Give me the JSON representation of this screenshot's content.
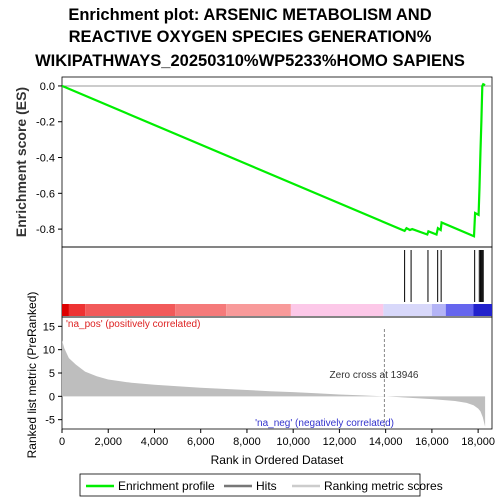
{
  "title_lines": [
    "Enrichment plot: ARSENIC METABOLISM AND",
    "REACTIVE OXYGEN SPECIES GENERATION%",
    "WIKIPATHWAYS_20250310%WP5233%HOMO SAPIENS"
  ],
  "colors": {
    "enrichment": "#00ee00",
    "hits": "#000000",
    "metric_fill": "#bebebe",
    "pos_label": "#dd2222",
    "neg_label": "#3333cc"
  },
  "chart_data": [
    {
      "type": "line",
      "panel": "enrichment-profile",
      "ylabel": "Enrichment score (ES)",
      "xlim": [
        0,
        18600
      ],
      "ylim": [
        -0.9,
        0.05
      ],
      "yticks": [
        0.0,
        -0.2,
        -0.4,
        -0.6,
        -0.8
      ],
      "ytick_labels": [
        "0.0",
        "-0.2",
        "-0.4",
        "-0.6",
        "-0.8"
      ],
      "series": [
        {
          "x": [
            0,
            14820,
            14900,
            15050,
            15150,
            15800,
            15850,
            16200,
            16260,
            16380,
            16420,
            17820,
            17870,
            18020,
            18060,
            18100,
            18140,
            18180,
            18220,
            18300
          ],
          "values": [
            0.0,
            -0.81,
            -0.795,
            -0.805,
            -0.8,
            -0.83,
            -0.812,
            -0.83,
            -0.795,
            -0.805,
            -0.763,
            -0.84,
            -0.71,
            -0.72,
            -0.565,
            -0.38,
            -0.195,
            0.0,
            0.01,
            0.005
          ]
        }
      ]
    },
    {
      "type": "scatter",
      "panel": "hits",
      "x": [
        14820,
        15100,
        15830,
        16250,
        16400,
        17850,
        18050,
        18100,
        18140,
        18180,
        18220
      ]
    },
    {
      "type": "area",
      "panel": "ranked-metric",
      "xlabel": "Rank in Ordered Dataset",
      "ylabel": "Ranked list metric (PreRanked)",
      "xlim": [
        0,
        18600
      ],
      "ylim": [
        -7,
        17
      ],
      "xticks": [
        0,
        2000,
        4000,
        6000,
        8000,
        10000,
        12000,
        14000,
        16000,
        18000
      ],
      "xtick_labels": [
        "0",
        "2,000",
        "4,000",
        "6,000",
        "8,000",
        "10,000",
        "12,000",
        "14,000",
        "16,000",
        "18,000"
      ],
      "yticks": [
        15,
        10,
        5,
        0,
        -5
      ],
      "ytick_labels": [
        "15",
        "10",
        "5",
        "0",
        "-5"
      ],
      "x": [
        0,
        100,
        300,
        600,
        1000,
        1500,
        2000,
        3000,
        4000,
        5000,
        6000,
        7000,
        8000,
        9000,
        10000,
        11000,
        12000,
        13000,
        13946,
        15000,
        16000,
        17000,
        17500,
        17800,
        18000,
        18100,
        18200,
        18300
      ],
      "values": [
        12.0,
        10.3,
        8.2,
        6.8,
        5.3,
        4.3,
        3.6,
        2.9,
        2.5,
        2.15,
        1.85,
        1.6,
        1.35,
        1.1,
        0.9,
        0.65,
        0.4,
        0.2,
        0.0,
        -0.3,
        -0.6,
        -1.0,
        -1.4,
        -1.9,
        -2.6,
        -3.2,
        -4.5,
        -6.5
      ],
      "annotations": {
        "zero_cross": "Zero cross at 13946",
        "zero_cross_x": 13946,
        "pos_label": "'na_pos' (positively correlated)",
        "neg_label": "'na_neg' (negatively correlated)"
      }
    }
  ],
  "colorbar": [
    {
      "from": 0,
      "to": 300,
      "color": "#dd0000"
    },
    {
      "from": 300,
      "to": 1000,
      "color": "#ee3333"
    },
    {
      "from": 1000,
      "to": 4900,
      "color": "#f25a5a"
    },
    {
      "from": 4900,
      "to": 7100,
      "color": "#f57a7a"
    },
    {
      "from": 7100,
      "to": 9900,
      "color": "#f89a9a"
    },
    {
      "from": 9900,
      "to": 13900,
      "color": "#fcc8e8"
    },
    {
      "from": 13900,
      "to": 16000,
      "color": "#d8d8fa"
    },
    {
      "from": 16000,
      "to": 16600,
      "color": "#b4b4f6"
    },
    {
      "from": 16600,
      "to": 17800,
      "color": "#6666ee"
    },
    {
      "from": 17800,
      "to": 18600,
      "color": "#2222cc"
    }
  ],
  "legend": [
    {
      "label": "Enrichment profile",
      "color": "#00ee00",
      "kind": "line"
    },
    {
      "label": "Hits",
      "color": "#777777",
      "kind": "line"
    },
    {
      "label": "Ranking metric scores",
      "color": "#cccccc",
      "kind": "line"
    }
  ]
}
